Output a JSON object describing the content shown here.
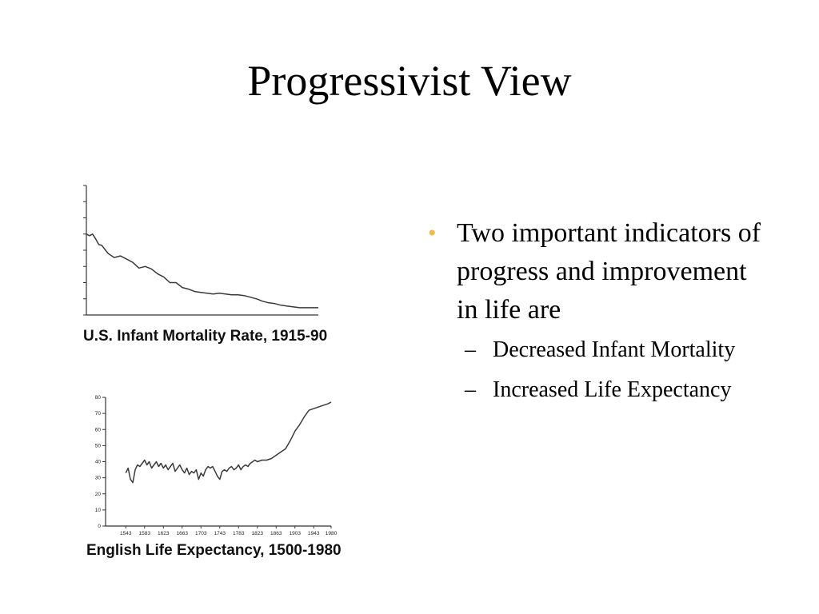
{
  "slide": {
    "title": "Progressivist View",
    "bullet_marker": "•",
    "sub_marker": "–",
    "bullets": [
      {
        "text": " Two important indicators of progress and improvement in life are",
        "sub": [
          "Decreased Infant Mortality",
          "Increased Life Expectancy"
        ]
      }
    ],
    "accent_color": "#f0b94a"
  },
  "chart_data": [
    {
      "type": "line",
      "title": "U.S. Infant Mortality Rate, 1915-90",
      "x": [
        1915,
        1916,
        1917,
        1918,
        1919,
        1920,
        1922,
        1924,
        1926,
        1928,
        1930,
        1932,
        1934,
        1936,
        1938,
        1940,
        1942,
        1944,
        1946,
        1948,
        1950,
        1952,
        1954,
        1956,
        1958,
        1960,
        1962,
        1964,
        1966,
        1968,
        1970,
        1972,
        1974,
        1976,
        1978,
        1980,
        1982,
        1984,
        1986,
        1988,
        1990
      ],
      "values": [
        100,
        98,
        100,
        94,
        87,
        86,
        76,
        71,
        73,
        69,
        65,
        58,
        60,
        57,
        51,
        47,
        40,
        40,
        34,
        32,
        29,
        28,
        27,
        26,
        27,
        26,
        25,
        25,
        24,
        22,
        20,
        17,
        15,
        14,
        12,
        11,
        10,
        9,
        9,
        9,
        9
      ],
      "xlim": [
        1915,
        1990
      ],
      "ylim": [
        0,
        160
      ],
      "yticks": 8,
      "xlabel": "",
      "ylabel": "",
      "grid": false
    },
    {
      "type": "line",
      "title": "English Life Expectancy, 1500-1980",
      "x": [
        1543,
        1548,
        1553,
        1558,
        1563,
        1568,
        1573,
        1578,
        1583,
        1588,
        1593,
        1598,
        1603,
        1608,
        1613,
        1618,
        1623,
        1628,
        1633,
        1638,
        1643,
        1648,
        1653,
        1658,
        1663,
        1668,
        1673,
        1678,
        1683,
        1688,
        1693,
        1698,
        1703,
        1708,
        1713,
        1718,
        1723,
        1728,
        1733,
        1738,
        1743,
        1748,
        1753,
        1758,
        1763,
        1768,
        1773,
        1778,
        1783,
        1788,
        1793,
        1798,
        1803,
        1808,
        1813,
        1818,
        1823,
        1833,
        1843,
        1853,
        1863,
        1873,
        1883,
        1893,
        1903,
        1913,
        1923,
        1933,
        1943,
        1953,
        1963,
        1973,
        1980
      ],
      "values": [
        33,
        36,
        29,
        27,
        35,
        38,
        37,
        39,
        41,
        38,
        40,
        36,
        38,
        40,
        37,
        39,
        36,
        38,
        35,
        37,
        39,
        34,
        36,
        38,
        35,
        33,
        36,
        32,
        34,
        33,
        35,
        29,
        33,
        31,
        35,
        37,
        36,
        37,
        34,
        31,
        29,
        34,
        35,
        34,
        36,
        37,
        35,
        36,
        38,
        35,
        37,
        38,
        37,
        39,
        40,
        41,
        40,
        41,
        41,
        42,
        44,
        46,
        48,
        53,
        59,
        63,
        68,
        72,
        73,
        74,
        75,
        76,
        77
      ],
      "xlim": [
        1500,
        1980
      ],
      "ylim": [
        0,
        80
      ],
      "yticks": [
        0,
        10,
        20,
        30,
        40,
        50,
        60,
        70,
        80
      ],
      "xticks": [
        1543,
        1583,
        1623,
        1663,
        1703,
        1743,
        1783,
        1823,
        1863,
        1903,
        1943,
        1980
      ],
      "xlabel": "",
      "ylabel": "",
      "grid": false
    }
  ]
}
